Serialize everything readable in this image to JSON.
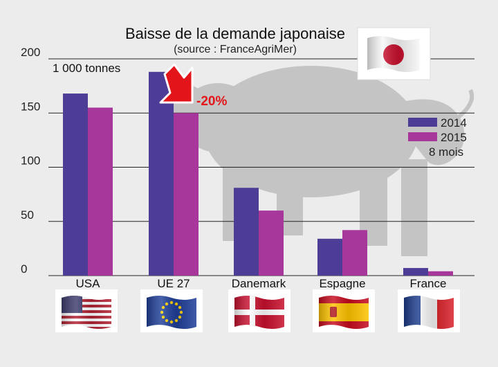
{
  "chart_data": {
    "type": "bar",
    "title": "Baisse de la demande japonaise",
    "subtitle": "(source : FranceAgriMer)",
    "unit_label": "1 000 tonnes",
    "categories": [
      "USA",
      "UE 27",
      "Danemark",
      "Espagne",
      "France"
    ],
    "series": [
      {
        "name": "2014",
        "values": [
          168,
          188,
          81,
          34,
          7
        ]
      },
      {
        "name": "2015",
        "values": [
          155,
          150,
          60,
          42,
          4
        ]
      }
    ],
    "series_note": "8 mois",
    "y_ticks": [
      "0",
      "50",
      "100",
      "150",
      "200"
    ],
    "ylim": [
      0,
      200
    ],
    "annotation": {
      "text": "-20%",
      "category": "UE 27"
    },
    "legend_position": "right",
    "grid": true
  },
  "colors": {
    "series_2014": "#4e3d96",
    "series_2015": "#a8379b",
    "grid": "#222222",
    "pig_silhouette": "#c4c4c4",
    "arrow": "#e4151a"
  },
  "icons": {
    "header_flag": "japan-flag-icon",
    "category_flags": [
      "usa-flag-icon",
      "eu-flag-icon",
      "denmark-flag-icon",
      "spain-flag-icon",
      "france-flag-icon"
    ],
    "background": "pig-silhouette"
  }
}
